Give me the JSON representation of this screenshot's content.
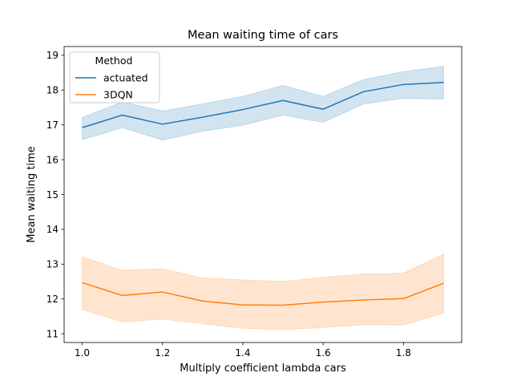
{
  "chart_data": {
    "type": "line",
    "title": "Mean waiting time of cars",
    "xlabel": "Multiply coefficient lambda cars",
    "ylabel": "Mean waiting time",
    "xlim": [
      0.955,
      1.945
    ],
    "ylim": [
      10.75,
      19.25
    ],
    "x_ticks": [
      "1.0",
      "1.2",
      "1.4",
      "1.6",
      "1.8"
    ],
    "y_ticks": [
      "11",
      "12",
      "13",
      "14",
      "15",
      "16",
      "17",
      "18",
      "19"
    ],
    "grid": false,
    "legend": {
      "title": "Method",
      "placement": "top-left"
    },
    "x": [
      1.0,
      1.1,
      1.2,
      1.3,
      1.4,
      1.5,
      1.6,
      1.7,
      1.8,
      1.9
    ],
    "series": [
      {
        "name": "actuated",
        "color": "#1f77b4",
        "values": [
          16.92,
          17.28,
          17.02,
          17.22,
          17.44,
          17.7,
          17.45,
          17.95,
          18.16,
          18.22
        ],
        "ci_low": [
          16.57,
          16.92,
          16.56,
          16.82,
          16.99,
          17.28,
          17.07,
          17.6,
          17.76,
          17.74
        ],
        "ci_high": [
          17.21,
          17.66,
          17.4,
          17.6,
          17.82,
          18.13,
          17.82,
          18.3,
          18.53,
          18.68
        ]
      },
      {
        "name": "3DQN",
        "color": "#ff7f0e",
        "values": [
          12.47,
          12.1,
          12.2,
          11.94,
          11.83,
          11.82,
          11.91,
          11.97,
          12.01,
          12.45
        ],
        "ci_low": [
          11.7,
          11.34,
          11.42,
          11.29,
          11.16,
          11.12,
          11.18,
          11.26,
          11.25,
          11.6
        ],
        "ci_high": [
          13.21,
          12.82,
          12.87,
          12.6,
          12.55,
          12.5,
          12.62,
          12.72,
          12.74,
          13.29
        ]
      }
    ]
  }
}
